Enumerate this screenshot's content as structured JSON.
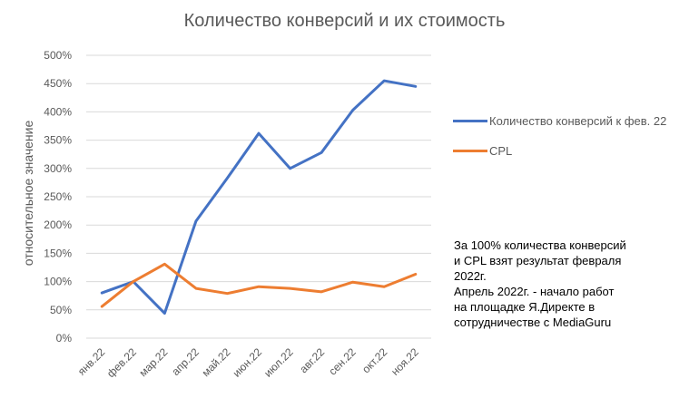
{
  "chart_data": {
    "type": "line",
    "title": "Количество конверсий и их стоимость",
    "xlabel": "",
    "ylabel": "относительное значение",
    "categories": [
      "янв.22",
      "фев.22",
      "мар.22",
      "апр.22",
      "май.22",
      "июн.22",
      "июл.22",
      "авг.22",
      "сен.22",
      "окт.22",
      "ноя.22"
    ],
    "ylim": [
      0,
      500
    ],
    "yticks": [
      "0%",
      "50%",
      "100%",
      "150%",
      "200%",
      "250%",
      "300%",
      "350%",
      "400%",
      "450%",
      "500%"
    ],
    "grid": true,
    "legend_position": "right",
    "series": [
      {
        "name": "Количество конверсий к фев. 22",
        "color": "#4472C4",
        "values": [
          80,
          100,
          44,
          207,
          283,
          362,
          300,
          328,
          403,
          455,
          445
        ]
      },
      {
        "name": "CPL",
        "color": "#ED7D31",
        "values": [
          56,
          100,
          131,
          88,
          79,
          91,
          88,
          82,
          99,
          91,
          113
        ]
      }
    ],
    "annotation_lines": [
      "За 100% количества конверсий",
      "и CPL взят результат февраля",
      "2022г.",
      "Апрель 2022г. - начало работ",
      "на площадке Я.Директе в",
      "сотрудничестве с MediaGuru"
    ]
  }
}
